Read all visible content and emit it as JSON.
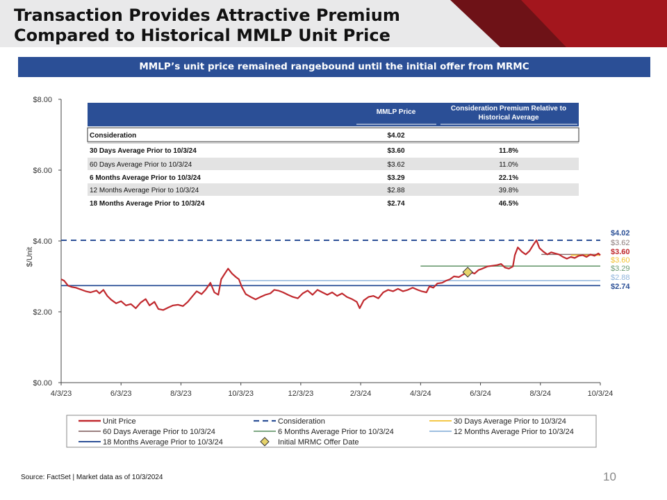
{
  "slide": {
    "title_line1": "Transaction Provides Attractive Premium",
    "title_line2": "Compared to Historical MMLP Unit Price",
    "banner": "MMLP’s unit price remained rangebound until the initial offer from MRMC",
    "source": "Source: FactSet | Market data as of 10/3/2024",
    "page_number": "10"
  },
  "colors": {
    "title_accent_dark": "#6e1217",
    "title_accent_red": "#a3161d",
    "banner_blue": "#2b4f96",
    "unit_price": "#c0282d",
    "consideration": "#2b4f96",
    "avg_30": "#f2c12e",
    "avg_60": "#8c6e6e",
    "avg_6m": "#6b9b72",
    "avg_12m": "#8fb4dc",
    "avg_18m": "#2b4f96",
    "offer_marker": "#e6d36a",
    "table_header": "#2b4f96",
    "table_band": "#e3e3e3"
  },
  "chart_data": {
    "type": "line",
    "ylabel": "$/Unit",
    "ylim": [
      0,
      8
    ],
    "yticks": [
      "$0.00",
      "$2.00",
      "$4.00",
      "$6.00",
      "$8.00"
    ],
    "xticks": [
      "4/3/23",
      "6/3/23",
      "8/3/23",
      "10/3/23",
      "12/3/23",
      "2/3/24",
      "4/3/24",
      "6/3/24",
      "8/3/24",
      "10/3/24"
    ],
    "series": [
      {
        "name": "Unit Price",
        "points": [
          [
            "2023-04-03",
            2.92
          ],
          [
            "2023-04-06",
            2.88
          ],
          [
            "2023-04-10",
            2.74
          ],
          [
            "2023-04-14",
            2.7
          ],
          [
            "2023-04-18",
            2.68
          ],
          [
            "2023-04-24",
            2.62
          ],
          [
            "2023-04-28",
            2.58
          ],
          [
            "2023-05-03",
            2.55
          ],
          [
            "2023-05-09",
            2.6
          ],
          [
            "2023-05-12",
            2.52
          ],
          [
            "2023-05-16",
            2.62
          ],
          [
            "2023-05-20",
            2.45
          ],
          [
            "2023-05-24",
            2.34
          ],
          [
            "2023-05-29",
            2.24
          ],
          [
            "2023-06-03",
            2.3
          ],
          [
            "2023-06-08",
            2.18
          ],
          [
            "2023-06-13",
            2.22
          ],
          [
            "2023-06-18",
            2.1
          ],
          [
            "2023-06-23",
            2.26
          ],
          [
            "2023-06-28",
            2.36
          ],
          [
            "2023-07-02",
            2.18
          ],
          [
            "2023-07-07",
            2.28
          ],
          [
            "2023-07-11",
            2.08
          ],
          [
            "2023-07-16",
            2.05
          ],
          [
            "2023-07-21",
            2.12
          ],
          [
            "2023-07-26",
            2.18
          ],
          [
            "2023-07-31",
            2.2
          ],
          [
            "2023-08-05",
            2.16
          ],
          [
            "2023-08-10",
            2.28
          ],
          [
            "2023-08-15",
            2.45
          ],
          [
            "2023-08-19",
            2.58
          ],
          [
            "2023-08-24",
            2.5
          ],
          [
            "2023-08-28",
            2.62
          ],
          [
            "2023-09-02",
            2.82
          ],
          [
            "2023-09-06",
            2.55
          ],
          [
            "2023-09-10",
            2.48
          ],
          [
            "2023-09-13",
            2.92
          ],
          [
            "2023-09-16",
            3.05
          ],
          [
            "2023-09-20",
            3.22
          ],
          [
            "2023-09-24",
            3.08
          ],
          [
            "2023-09-28",
            2.98
          ],
          [
            "2023-10-01",
            2.92
          ],
          [
            "2023-10-04",
            2.7
          ],
          [
            "2023-10-08",
            2.5
          ],
          [
            "2023-10-13",
            2.42
          ],
          [
            "2023-10-18",
            2.35
          ],
          [
            "2023-10-23",
            2.42
          ],
          [
            "2023-10-28",
            2.48
          ],
          [
            "2023-11-02",
            2.52
          ],
          [
            "2023-11-06",
            2.62
          ],
          [
            "2023-11-10",
            2.6
          ],
          [
            "2023-11-15",
            2.55
          ],
          [
            "2023-11-20",
            2.48
          ],
          [
            "2023-11-25",
            2.42
          ],
          [
            "2023-11-30",
            2.38
          ],
          [
            "2023-12-05",
            2.52
          ],
          [
            "2023-12-10",
            2.6
          ],
          [
            "2023-12-15",
            2.48
          ],
          [
            "2023-12-20",
            2.62
          ],
          [
            "2023-12-25",
            2.55
          ],
          [
            "2023-12-30",
            2.48
          ],
          [
            "2024-01-04",
            2.55
          ],
          [
            "2024-01-09",
            2.45
          ],
          [
            "2024-01-14",
            2.52
          ],
          [
            "2024-01-19",
            2.42
          ],
          [
            "2024-01-24",
            2.36
          ],
          [
            "2024-01-29",
            2.28
          ],
          [
            "2024-02-01",
            2.1
          ],
          [
            "2024-02-05",
            2.32
          ],
          [
            "2024-02-10",
            2.42
          ],
          [
            "2024-02-15",
            2.45
          ],
          [
            "2024-02-20",
            2.38
          ],
          [
            "2024-02-25",
            2.55
          ],
          [
            "2024-03-01",
            2.62
          ],
          [
            "2024-03-06",
            2.58
          ],
          [
            "2024-03-11",
            2.65
          ],
          [
            "2024-03-16",
            2.58
          ],
          [
            "2024-03-21",
            2.62
          ],
          [
            "2024-03-26",
            2.68
          ],
          [
            "2024-03-31",
            2.62
          ],
          [
            "2024-04-04",
            2.58
          ],
          [
            "2024-04-09",
            2.55
          ],
          [
            "2024-04-12",
            2.72
          ],
          [
            "2024-04-16",
            2.68
          ],
          [
            "2024-04-20",
            2.8
          ],
          [
            "2024-04-25",
            2.82
          ],
          [
            "2024-04-29",
            2.88
          ],
          [
            "2024-05-03",
            2.92
          ],
          [
            "2024-05-07",
            3.0
          ],
          [
            "2024-05-12",
            2.98
          ],
          [
            "2024-05-16",
            3.05
          ],
          [
            "2024-05-20",
            3.1
          ],
          [
            "2024-05-24",
            3.12
          ],
          [
            "2024-05-28",
            3.08
          ],
          [
            "2024-06-01",
            3.18
          ],
          [
            "2024-06-05",
            3.22
          ],
          [
            "2024-06-10",
            3.28
          ],
          [
            "2024-06-15",
            3.3
          ],
          [
            "2024-06-20",
            3.32
          ],
          [
            "2024-06-24",
            3.35
          ],
          [
            "2024-06-28",
            3.25
          ],
          [
            "2024-07-02",
            3.22
          ],
          [
            "2024-07-06",
            3.28
          ],
          [
            "2024-07-08",
            3.6
          ],
          [
            "2024-07-11",
            3.82
          ],
          [
            "2024-07-15",
            3.7
          ],
          [
            "2024-07-19",
            3.62
          ],
          [
            "2024-07-23",
            3.72
          ],
          [
            "2024-07-27",
            3.9
          ],
          [
            "2024-07-30",
            4.02
          ],
          [
            "2024-08-02",
            3.8
          ],
          [
            "2024-08-06",
            3.7
          ],
          [
            "2024-08-10",
            3.62
          ],
          [
            "2024-08-14",
            3.68
          ],
          [
            "2024-08-18",
            3.65
          ],
          [
            "2024-08-22",
            3.62
          ],
          [
            "2024-08-26",
            3.55
          ],
          [
            "2024-08-30",
            3.5
          ],
          [
            "2024-09-03",
            3.55
          ],
          [
            "2024-09-07",
            3.52
          ],
          [
            "2024-09-11",
            3.58
          ],
          [
            "2024-09-15",
            3.6
          ],
          [
            "2024-09-19",
            3.55
          ],
          [
            "2024-09-23",
            3.62
          ],
          [
            "2024-09-27",
            3.58
          ],
          [
            "2024-10-01",
            3.65
          ],
          [
            "2024-10-03",
            3.6
          ]
        ]
      },
      {
        "name": "Consideration",
        "from": "2023-04-03",
        "to": "2024-10-03",
        "value": 4.02,
        "label": "$4.02"
      },
      {
        "name": "30 Days Average Prior to 10/3/24",
        "from": "2024-09-03",
        "to": "2024-10-03",
        "value": 3.6,
        "label": "$3.60"
      },
      {
        "name": "60 Days Average Prior to 10/3/24",
        "from": "2024-08-04",
        "to": "2024-10-03",
        "value": 3.62,
        "label": "$3.62"
      },
      {
        "name": "6 Months Average Prior to 10/3/24",
        "from": "2024-04-03",
        "to": "2024-10-03",
        "value": 3.29,
        "label": "$3.29"
      },
      {
        "name": "12 Months Average Prior to 10/3/24",
        "from": "2023-10-03",
        "to": "2024-10-03",
        "value": 2.88,
        "label": "$2.88"
      },
      {
        "name": "18 Months Average Prior to 10/3/24",
        "from": "2023-04-03",
        "to": "2024-10-03",
        "value": 2.74,
        "label": "$2.74"
      },
      {
        "name": "Initial MRMC Offer Date",
        "date": "2024-05-21",
        "value": 3.12
      }
    ],
    "legend": [
      "Unit Price",
      "Consideration",
      "30 Days Average Prior to 10/3/24",
      "60 Days Average Prior to 10/3/24",
      "6 Months Average Prior to 10/3/24",
      "12 Months Average Prior to 10/3/24",
      "18 Months Average Prior to 10/3/24",
      "Initial MRMC Offer Date"
    ],
    "legend_position": "bottom",
    "grid": false
  },
  "table": {
    "headers": [
      "MMLP Price",
      "Consideration Premium Relative to Historical Average"
    ],
    "rows": [
      {
        "label": "Consideration",
        "price": "$4.02",
        "premium": ""
      },
      {
        "label": "30 Days Average Prior to 10/3/24",
        "price": "$3.60",
        "premium": "11.8%"
      },
      {
        "label": "60 Days Average Prior to 10/3/24",
        "price": "$3.62",
        "premium": "11.0%"
      },
      {
        "label": "6 Months Average Prior to 10/3/24",
        "price": "$3.29",
        "premium": "22.1%"
      },
      {
        "label": "12 Months Average Prior to 10/3/24",
        "price": "$2.88",
        "premium": "39.8%"
      },
      {
        "label": "18 Months Average Prior to 10/3/24",
        "price": "$2.74",
        "premium": "46.5%"
      }
    ]
  }
}
